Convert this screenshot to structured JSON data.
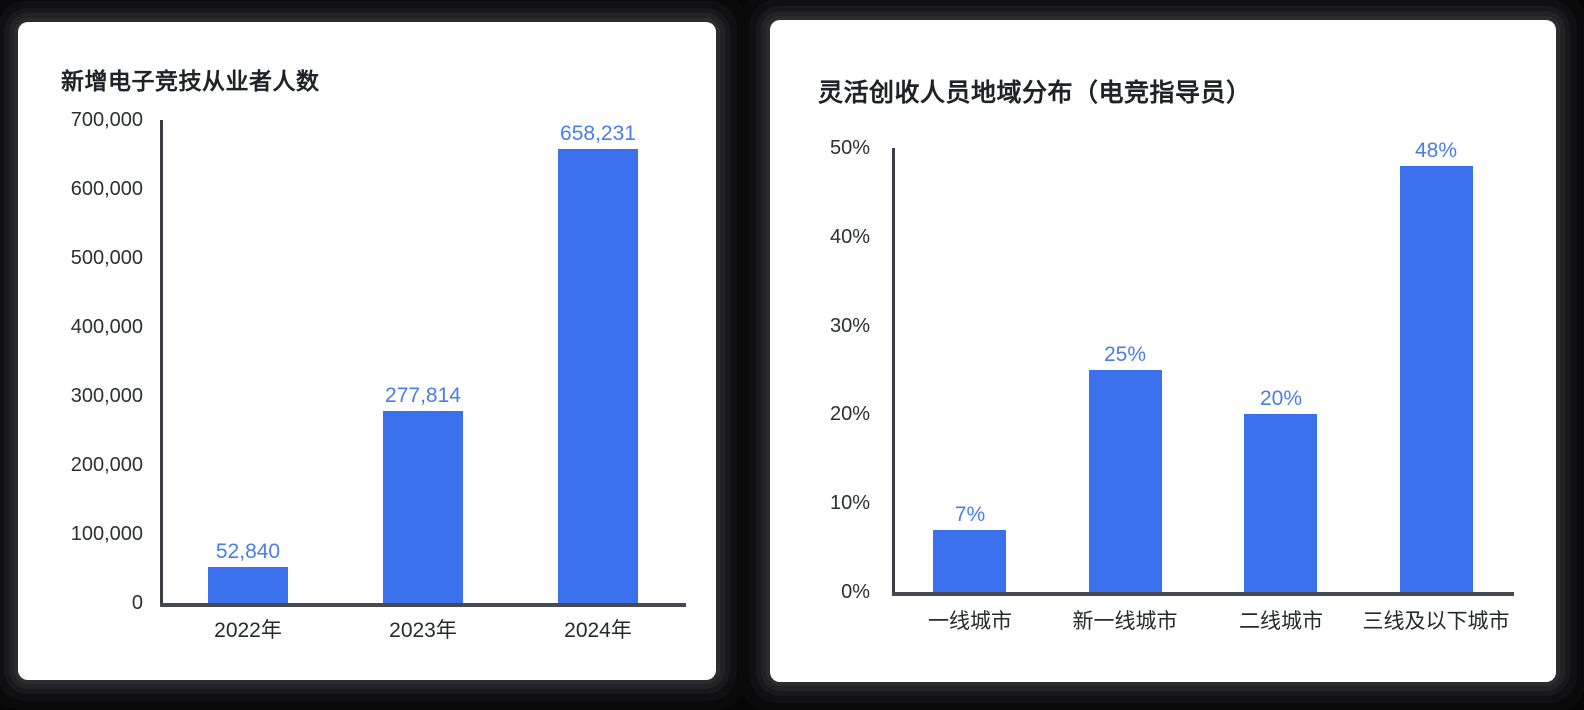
{
  "page": {
    "background": "#000000"
  },
  "colors": {
    "bar": "#3c71ee",
    "value_label": "#4a7ceb",
    "axis_y": "#3b3e45",
    "axis_x": "#46494f",
    "tick_text": "#2c2f35",
    "category_text": "#26292e",
    "title_text": "#1f2227",
    "card_bg": "#ffffff"
  },
  "chart_data": [
    {
      "type": "bar",
      "title": "新增电子竞技从业者人数",
      "categories": [
        "2022年",
        "2023年",
        "2024年"
      ],
      "values": [
        52840,
        277814,
        658231
      ],
      "value_labels": [
        "52,840",
        "277,814",
        "658,231"
      ],
      "y_ticks": [
        "700,000",
        "600,000",
        "500,000",
        "400,000",
        "300,000",
        "200,000",
        "100,000",
        "0"
      ],
      "ylim": [
        0,
        700000
      ],
      "xlabel": "",
      "ylabel": "",
      "grid": false,
      "legend": "none"
    },
    {
      "type": "bar",
      "title": "灵活创收人员地域分布（电竞指导员）",
      "categories": [
        "一线城市",
        "新一线城市",
        "二线城市",
        "三线及以下城市"
      ],
      "values": [
        7,
        25,
        20,
        48
      ],
      "value_labels": [
        "7%",
        "25%",
        "20%",
        "48%"
      ],
      "y_ticks": [
        "50%",
        "40%",
        "30%",
        "20%",
        "10%",
        "0%"
      ],
      "ylim": [
        0,
        50
      ],
      "xlabel": "",
      "ylabel": "",
      "grid": false,
      "legend": "none"
    }
  ]
}
